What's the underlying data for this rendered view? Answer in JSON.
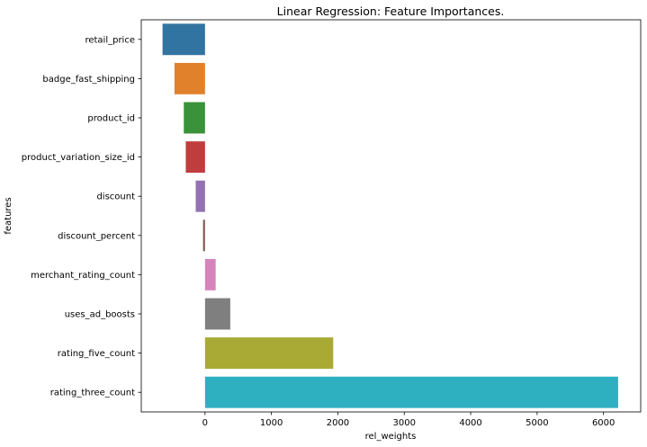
{
  "chart_data": {
    "type": "bar",
    "orientation": "horizontal",
    "title": "Linear Regression: Feature Importances.",
    "xlabel": "rel_weights",
    "ylabel": "features",
    "categories": [
      "retail_price",
      "badge_fast_shipping",
      "product_id",
      "product_variation_size_id",
      "discount",
      "discount_percent",
      "merchant_rating_count",
      "uses_ad_boosts",
      "rating_five_count",
      "rating_three_count"
    ],
    "values": [
      -640,
      -460,
      -320,
      -290,
      -140,
      -30,
      160,
      380,
      1930,
      6220
    ],
    "colors": [
      "#3274a1",
      "#e1812c",
      "#3a923a",
      "#c03d3e",
      "#9372b2",
      "#845b53",
      "#d684bd",
      "#7f7f7f",
      "#a9aa35",
      "#2eb0c0"
    ],
    "xlim": [
      -960,
      6560
    ],
    "xticks": [
      0,
      1000,
      2000,
      3000,
      4000,
      5000,
      6000
    ],
    "xtick_labels": [
      "0",
      "1000",
      "2000",
      "3000",
      "4000",
      "5000",
      "6000"
    ],
    "grid": false,
    "legend": "none"
  }
}
